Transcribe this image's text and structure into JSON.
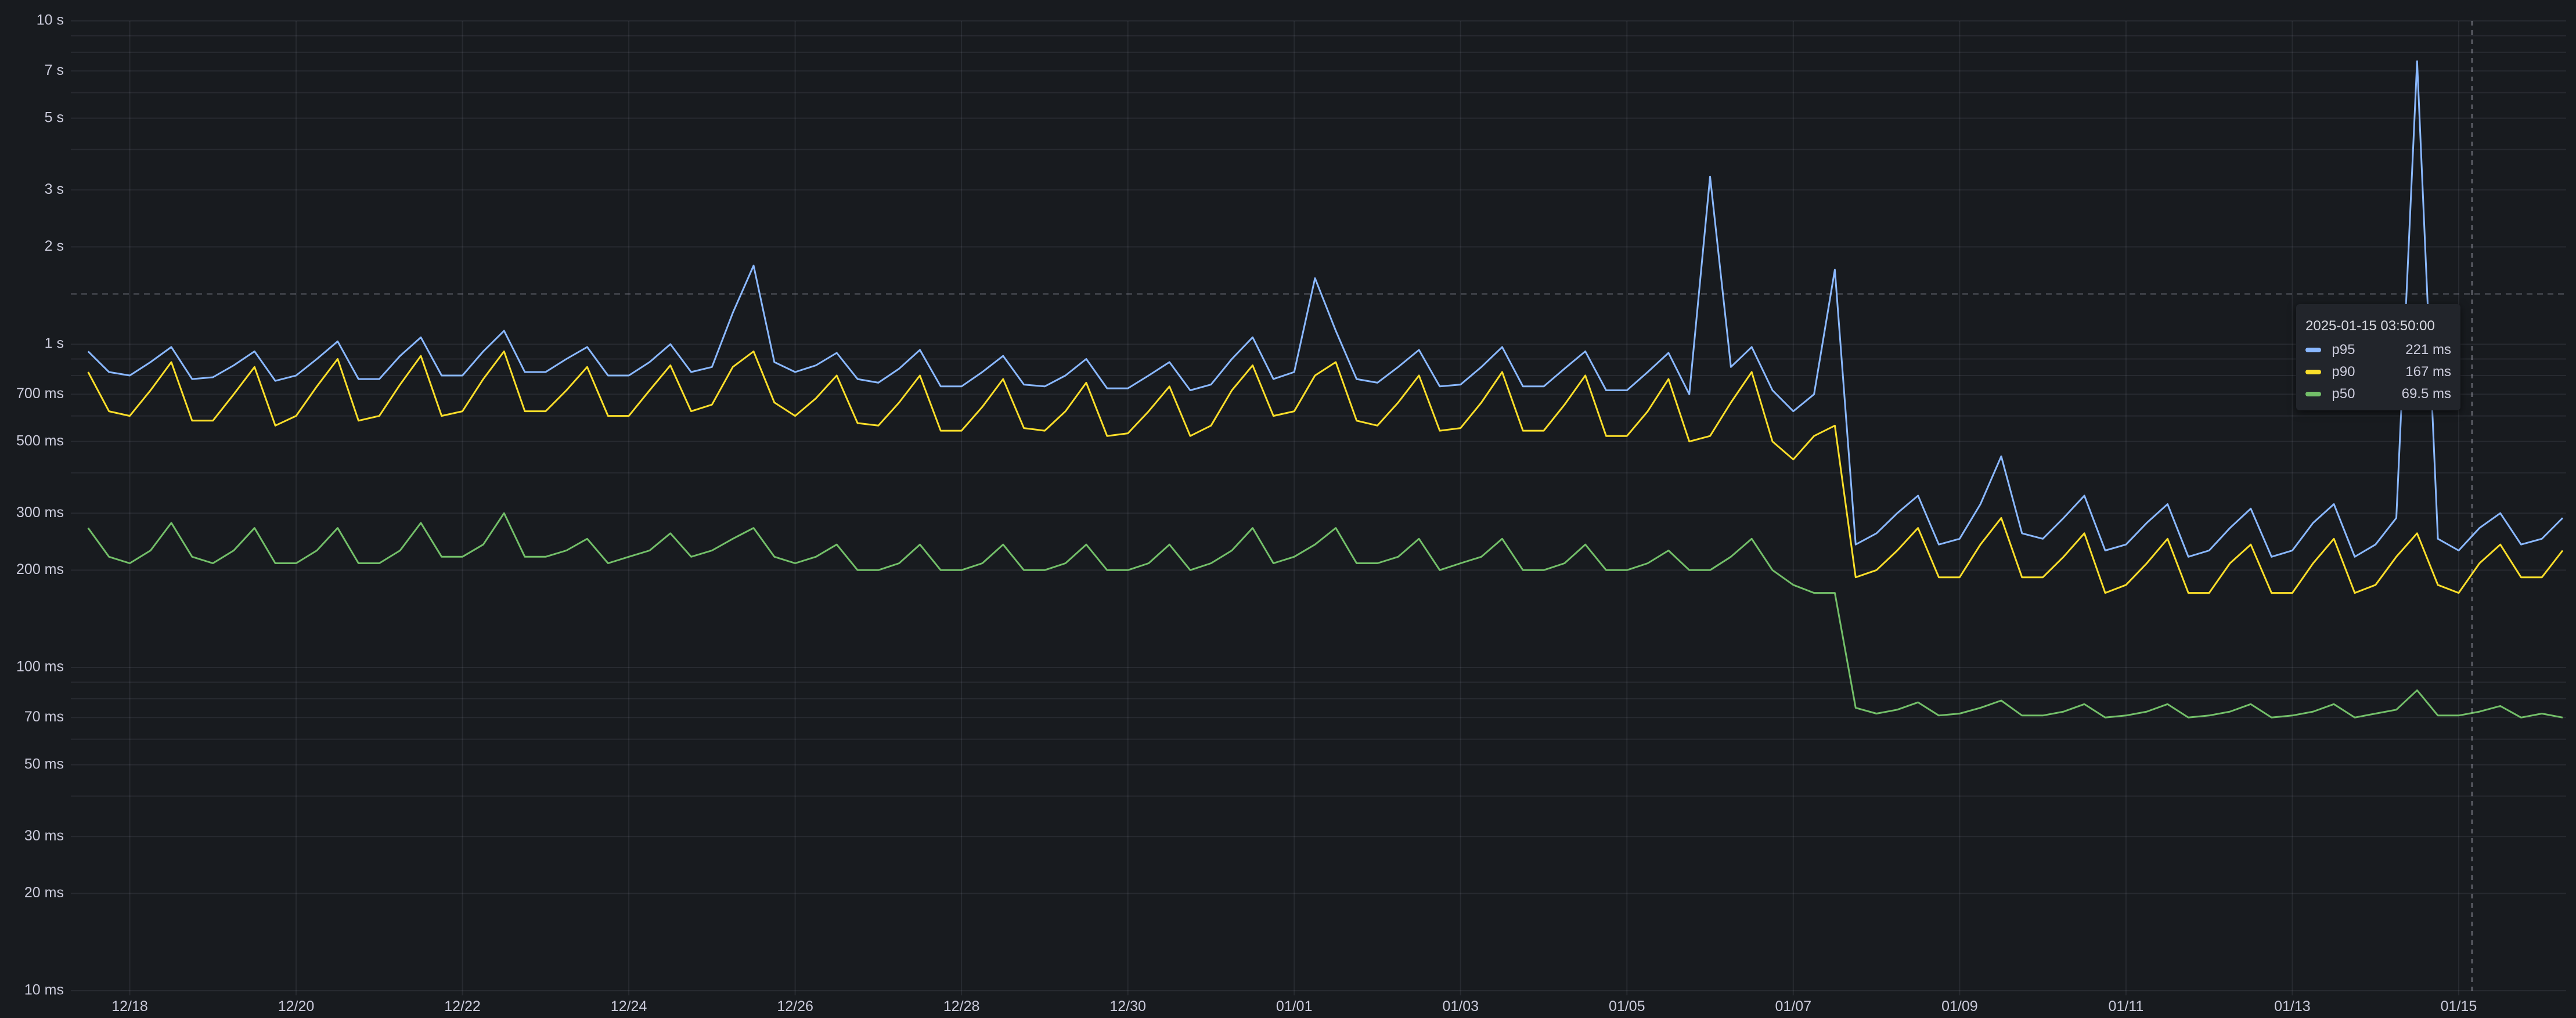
{
  "chart_data": {
    "type": "line",
    "title": "",
    "xlabel": "",
    "ylabel": "",
    "y_scale": "log",
    "ylim_seconds": [
      0.01,
      10
    ],
    "y_ticks": [
      {
        "value": 10,
        "label": "10 s"
      },
      {
        "value": 7,
        "label": "7 s"
      },
      {
        "value": 5,
        "label": "5 s"
      },
      {
        "value": 3,
        "label": "3 s"
      },
      {
        "value": 2,
        "label": "2 s"
      },
      {
        "value": 1,
        "label": "1 s"
      },
      {
        "value": 0.7,
        "label": "700 ms"
      },
      {
        "value": 0.5,
        "label": "500 ms"
      },
      {
        "value": 0.3,
        "label": "300 ms"
      },
      {
        "value": 0.2,
        "label": "200 ms"
      },
      {
        "value": 0.1,
        "label": "100 ms"
      },
      {
        "value": 0.07,
        "label": "70 ms"
      },
      {
        "value": 0.05,
        "label": "50 ms"
      },
      {
        "value": 0.03,
        "label": "30 ms"
      },
      {
        "value": 0.02,
        "label": "20 ms"
      },
      {
        "value": 0.01,
        "label": "10 ms"
      }
    ],
    "x_ticks": [
      {
        "date": "2024-12-18",
        "label": "12/18"
      },
      {
        "date": "2024-12-20",
        "label": "12/20"
      },
      {
        "date": "2024-12-22",
        "label": "12/22"
      },
      {
        "date": "2024-12-24",
        "label": "12/24"
      },
      {
        "date": "2024-12-26",
        "label": "12/26"
      },
      {
        "date": "2024-12-28",
        "label": "12/28"
      },
      {
        "date": "2024-12-30",
        "label": "12/30"
      },
      {
        "date": "2025-01-01",
        "label": "01/01"
      },
      {
        "date": "2025-01-03",
        "label": "01/03"
      },
      {
        "date": "2025-01-05",
        "label": "01/05"
      },
      {
        "date": "2025-01-07",
        "label": "01/07"
      },
      {
        "date": "2025-01-09",
        "label": "01/09"
      },
      {
        "date": "2025-01-11",
        "label": "01/11"
      },
      {
        "date": "2025-01-13",
        "label": "01/13"
      },
      {
        "date": "2025-01-15",
        "label": "01/15"
      }
    ],
    "xlim": [
      "2024-12-17T07:00:00Z",
      "2025-01-16T07:00:00Z"
    ],
    "grid": true,
    "threshold_line_seconds": 1.43,
    "x_start": "2024-12-17T12:00:00Z",
    "x_step_hours": 6,
    "series": [
      {
        "name": "p95",
        "color": "#8ab8ff",
        "values": [
          0.95,
          0.82,
          0.8,
          0.88,
          0.98,
          0.78,
          0.79,
          0.86,
          0.95,
          0.77,
          0.8,
          0.9,
          1.02,
          0.78,
          0.78,
          0.92,
          1.05,
          0.8,
          0.8,
          0.95,
          1.1,
          0.82,
          0.82,
          0.9,
          0.98,
          0.8,
          0.8,
          0.88,
          1.0,
          0.82,
          0.85,
          1.25,
          1.75,
          0.88,
          0.82,
          0.86,
          0.94,
          0.78,
          0.76,
          0.84,
          0.96,
          0.74,
          0.74,
          0.82,
          0.92,
          0.75,
          0.74,
          0.8,
          0.9,
          0.73,
          0.73,
          0.8,
          0.88,
          0.72,
          0.75,
          0.9,
          1.05,
          0.78,
          0.82,
          1.6,
          1.1,
          0.78,
          0.76,
          0.85,
          0.96,
          0.74,
          0.75,
          0.85,
          0.98,
          0.74,
          0.74,
          0.84,
          0.95,
          0.72,
          0.72,
          0.82,
          0.94,
          0.7,
          3.3,
          0.85,
          0.98,
          0.72,
          0.62,
          0.7,
          1.7,
          0.24,
          0.26,
          0.3,
          0.34,
          0.24,
          0.25,
          0.32,
          0.45,
          0.26,
          0.25,
          0.29,
          0.34,
          0.23,
          0.24,
          0.28,
          0.32,
          0.22,
          0.23,
          0.27,
          0.31,
          0.22,
          0.23,
          0.28,
          0.32,
          0.22,
          0.24,
          0.29,
          7.5,
          0.25,
          0.23,
          0.27,
          0.3,
          0.24,
          0.25,
          0.29
        ]
      },
      {
        "name": "p90",
        "color": "#fade2a",
        "values": [
          0.82,
          0.62,
          0.6,
          0.72,
          0.88,
          0.58,
          0.58,
          0.7,
          0.85,
          0.56,
          0.6,
          0.74,
          0.9,
          0.58,
          0.6,
          0.75,
          0.92,
          0.6,
          0.62,
          0.78,
          0.95,
          0.62,
          0.62,
          0.72,
          0.85,
          0.6,
          0.6,
          0.72,
          0.86,
          0.62,
          0.65,
          0.85,
          0.95,
          0.66,
          0.6,
          0.68,
          0.8,
          0.57,
          0.56,
          0.66,
          0.8,
          0.54,
          0.54,
          0.64,
          0.78,
          0.55,
          0.54,
          0.62,
          0.76,
          0.52,
          0.53,
          0.62,
          0.74,
          0.52,
          0.56,
          0.72,
          0.86,
          0.6,
          0.62,
          0.8,
          0.88,
          0.58,
          0.56,
          0.66,
          0.8,
          0.54,
          0.55,
          0.66,
          0.82,
          0.54,
          0.54,
          0.65,
          0.8,
          0.52,
          0.52,
          0.62,
          0.78,
          0.5,
          0.52,
          0.66,
          0.82,
          0.5,
          0.44,
          0.52,
          0.56,
          0.19,
          0.2,
          0.23,
          0.27,
          0.19,
          0.19,
          0.24,
          0.29,
          0.19,
          0.19,
          0.22,
          0.26,
          0.17,
          0.18,
          0.21,
          0.25,
          0.17,
          0.17,
          0.21,
          0.24,
          0.17,
          0.17,
          0.21,
          0.25,
          0.17,
          0.18,
          0.22,
          0.26,
          0.18,
          0.17,
          0.21,
          0.24,
          0.19,
          0.19,
          0.23
        ]
      },
      {
        "name": "p50",
        "color": "#73bf69",
        "values": [
          0.27,
          0.22,
          0.21,
          0.23,
          0.28,
          0.22,
          0.21,
          0.23,
          0.27,
          0.21,
          0.21,
          0.23,
          0.27,
          0.21,
          0.21,
          0.23,
          0.28,
          0.22,
          0.22,
          0.24,
          0.3,
          0.22,
          0.22,
          0.23,
          0.25,
          0.21,
          0.22,
          0.23,
          0.26,
          0.22,
          0.23,
          0.25,
          0.27,
          0.22,
          0.21,
          0.22,
          0.24,
          0.2,
          0.2,
          0.21,
          0.24,
          0.2,
          0.2,
          0.21,
          0.24,
          0.2,
          0.2,
          0.21,
          0.24,
          0.2,
          0.2,
          0.21,
          0.24,
          0.2,
          0.21,
          0.23,
          0.27,
          0.21,
          0.22,
          0.24,
          0.27,
          0.21,
          0.21,
          0.22,
          0.25,
          0.2,
          0.21,
          0.22,
          0.25,
          0.2,
          0.2,
          0.21,
          0.24,
          0.2,
          0.2,
          0.21,
          0.23,
          0.2,
          0.2,
          0.22,
          0.25,
          0.2,
          0.18,
          0.17,
          0.17,
          0.075,
          0.072,
          0.074,
          0.078,
          0.071,
          0.072,
          0.075,
          0.079,
          0.071,
          0.071,
          0.073,
          0.077,
          0.07,
          0.071,
          0.073,
          0.077,
          0.07,
          0.071,
          0.073,
          0.077,
          0.07,
          0.071,
          0.073,
          0.077,
          0.07,
          0.072,
          0.074,
          0.085,
          0.071,
          0.071,
          0.073,
          0.076,
          0.07,
          0.072,
          0.07
        ]
      }
    ]
  },
  "tooltip": {
    "time": "2025-01-15 03:50:00",
    "cursor_time": "2025-01-15T03:50:00Z",
    "rows": [
      {
        "name": "p95",
        "value": "221 ms",
        "color": "#8ab8ff"
      },
      {
        "name": "p90",
        "value": "167 ms",
        "color": "#fade2a"
      },
      {
        "name": "p50",
        "value": "69.5 ms",
        "color": "#73bf69"
      }
    ]
  }
}
